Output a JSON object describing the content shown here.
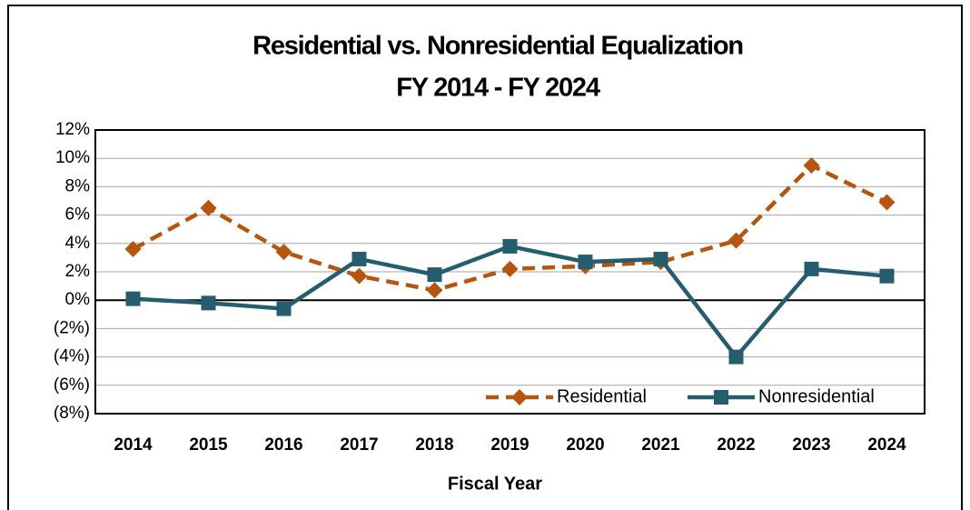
{
  "chart_data": {
    "type": "line",
    "title": "Residential vs. Nonresidential Equalization",
    "subtitle": "FY 2014 - FY 2024",
    "x_label": "Fiscal Year",
    "categories": [
      "2014",
      "2015",
      "2016",
      "2017",
      "2018",
      "2019",
      "2020",
      "2021",
      "2022",
      "2023",
      "2024"
    ],
    "series": [
      {
        "name": "Residential",
        "color": "#b4560f",
        "style": "dashed",
        "marker": "diamond",
        "values": [
          3.6,
          6.5,
          3.4,
          1.7,
          0.7,
          2.2,
          2.4,
          2.7,
          4.2,
          9.5,
          6.9
        ]
      },
      {
        "name": "Nonresidential",
        "color": "#245e6e",
        "style": "solid",
        "marker": "square",
        "values": [
          0.1,
          -0.2,
          -0.6,
          2.9,
          1.8,
          3.8,
          2.7,
          2.9,
          -4.0,
          2.2,
          1.7
        ]
      }
    ],
    "ylim": [
      -8,
      12
    ],
    "yticks": [
      {
        "value": -8,
        "label": "(8%)"
      },
      {
        "value": -6,
        "label": "(6%)"
      },
      {
        "value": -4,
        "label": "(4%)"
      },
      {
        "value": -2,
        "label": "(2%)"
      },
      {
        "value": 0,
        "label": "0%"
      },
      {
        "value": 2,
        "label": "2%"
      },
      {
        "value": 4,
        "label": "4%"
      },
      {
        "value": 6,
        "label": "6%"
      },
      {
        "value": 8,
        "label": "8%"
      },
      {
        "value": 10,
        "label": "10%"
      },
      {
        "value": 12,
        "label": "12%"
      }
    ],
    "grid": true,
    "legend": "lower right"
  }
}
